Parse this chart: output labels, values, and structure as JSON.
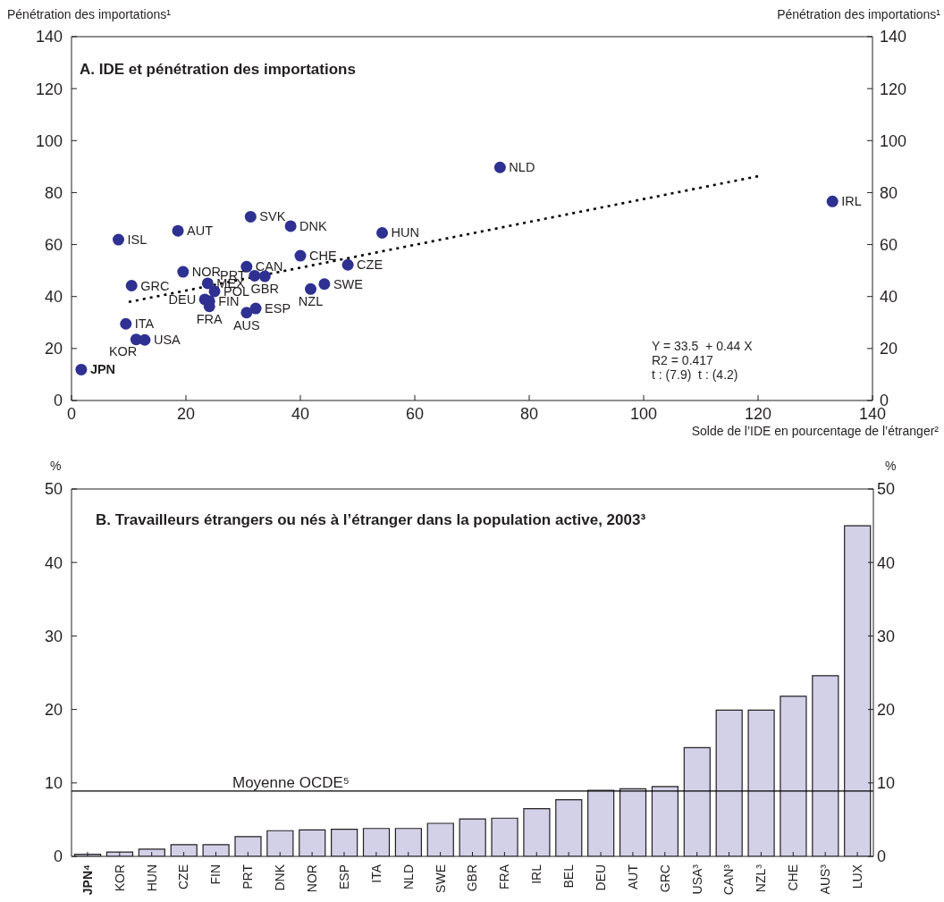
{
  "chart_data": [
    {
      "type": "scatter",
      "title": "A. IDE et pénétration des importations",
      "xlabel": "Solde de l’IDE en pourcentage de l’étranger²",
      "ylabel": "Pénétration des importations¹",
      "y2label": "Pénétration des importations¹",
      "xlim": [
        0,
        140
      ],
      "xticks": [
        0,
        20,
        40,
        60,
        80,
        100,
        120,
        140
      ],
      "ylim": [
        0,
        140
      ],
      "yticks": [
        0,
        20,
        40,
        60,
        80,
        100,
        120,
        140
      ],
      "y2lim": [
        0,
        140
      ],
      "y2ticks": [
        0,
        20,
        40,
        60,
        80,
        100,
        120,
        140
      ],
      "marker": "circle",
      "series": [
        {
          "name": "JPN",
          "color": "#2e3192",
          "x": [
            1.7
          ],
          "values": [
            11.9
          ]
        },
        {
          "name": "ISL",
          "color": "#2e3192",
          "x": [
            8.2
          ],
          "values": [
            61.9
          ]
        },
        {
          "name": "AUT",
          "color": "#2e3192",
          "x": [
            18.6
          ],
          "values": [
            65.3
          ]
        },
        {
          "name": "SVK",
          "color": "#2e3192",
          "x": [
            31.3
          ],
          "values": [
            70.7
          ]
        },
        {
          "name": "DNK",
          "color": "#2e3192",
          "x": [
            38.3
          ],
          "values": [
            67.1
          ]
        },
        {
          "name": "NLD",
          "color": "#2e3192",
          "x": [
            74.9
          ],
          "values": [
            89.7
          ]
        },
        {
          "name": "IRL",
          "color": "#2e3192",
          "x": [
            133.0
          ],
          "values": [
            76.6
          ]
        },
        {
          "name": "HUN",
          "color": "#2e3192",
          "x": [
            54.3
          ],
          "values": [
            64.5
          ]
        },
        {
          "name": "CHE",
          "color": "#2e3192",
          "x": [
            40.0
          ],
          "values": [
            55.7
          ]
        },
        {
          "name": "CZE",
          "color": "#2e3192",
          "x": [
            48.3
          ],
          "values": [
            52.2
          ]
        },
        {
          "name": "CAN",
          "color": "#2e3192",
          "x": [
            30.6
          ],
          "values": [
            51.5
          ]
        },
        {
          "name": "PRT",
          "color": "#2e3192",
          "x": [
            32.0
          ],
          "values": [
            48.0
          ]
        },
        {
          "name": "GBR",
          "color": "#2e3192",
          "x": [
            33.8
          ],
          "values": [
            47.8
          ]
        },
        {
          "name": "NOR",
          "color": "#2e3192",
          "x": [
            19.5
          ],
          "values": [
            49.5
          ]
        },
        {
          "name": "GRC",
          "color": "#2e3192",
          "x": [
            10.5
          ],
          "values": [
            44.2
          ]
        },
        {
          "name": "MEX",
          "color": "#2e3192",
          "x": [
            23.8
          ],
          "values": [
            45.1
          ]
        },
        {
          "name": "POL",
          "color": "#2e3192",
          "x": [
            25.0
          ],
          "values": [
            42.0
          ]
        },
        {
          "name": "DEU",
          "color": "#2e3192",
          "x": [
            23.3
          ],
          "values": [
            38.9
          ]
        },
        {
          "name": "FIN",
          "color": "#2e3192",
          "x": [
            24.1
          ],
          "values": [
            38.2
          ]
        },
        {
          "name": "FRA",
          "color": "#2e3192",
          "x": [
            24.1
          ],
          "values": [
            36.2
          ]
        },
        {
          "name": "ITA",
          "color": "#2e3192",
          "x": [
            9.5
          ],
          "values": [
            29.5
          ]
        },
        {
          "name": "USA",
          "color": "#2e3192",
          "x": [
            12.8
          ],
          "values": [
            23.3
          ]
        },
        {
          "name": "KOR",
          "color": "#2e3192",
          "x": [
            11.3
          ],
          "values": [
            23.5
          ]
        },
        {
          "name": "AUS",
          "color": "#2e3192",
          "x": [
            30.6
          ],
          "values": [
            33.8
          ]
        },
        {
          "name": "ESP",
          "color": "#2e3192",
          "x": [
            32.2
          ],
          "values": [
            35.4
          ]
        },
        {
          "name": "NZL",
          "color": "#2e3192",
          "x": [
            41.8
          ],
          "values": [
            42.9
          ]
        },
        {
          "name": "SWE",
          "color": "#2e3192",
          "x": [
            44.2
          ],
          "values": [
            44.8
          ]
        },
        {
          "type": "line",
          "color": "#000000",
          "line_style": "dotted",
          "marker": "none",
          "x": [
            10,
            120
          ],
          "values": [
            37.9,
            86.3
          ]
        }
      ],
      "annotations": [
        "Y = 33.5  + 0.44 X",
        "R2 = 0.417",
        "t : (7.9)  t : (4.2)"
      ]
    },
    {
      "type": "bar",
      "title": "B. Travailleurs étrangers ou nés à l’étranger dans la population active, 2003³",
      "ylabel": "%",
      "y2label": "%",
      "categories": [
        "JPN⁴",
        "KOR",
        "HUN",
        "CZE",
        "FIN",
        "PRT",
        "DNK",
        "NOR",
        "ESP",
        "ITA",
        "NLD",
        "SWE",
        "GBR",
        "FRA",
        "IRL",
        "BEL",
        "DEU",
        "AUT",
        "GRC",
        "USA³",
        "CAN³",
        "NZL³",
        "CHE",
        "AUS³",
        "LUX"
      ],
      "values": [
        0.3,
        0.6,
        1.0,
        1.6,
        1.6,
        2.7,
        3.5,
        3.6,
        3.7,
        3.8,
        3.8,
        4.5,
        5.1,
        5.2,
        6.5,
        7.7,
        9.0,
        9.2,
        9.5,
        14.8,
        19.9,
        19.9,
        21.8,
        24.6,
        45.0
      ],
      "color": "#d3d1e8",
      "ylim": [
        0,
        50
      ],
      "yticks": [
        0,
        10,
        20,
        30,
        40,
        50
      ],
      "y2lim": [
        0,
        50
      ],
      "y2ticks": [
        0,
        10,
        20,
        30,
        40,
        50
      ],
      "ref_lines": [
        {
          "axis": "y",
          "value": 8.9,
          "label": "Moyenne OCDE⁵",
          "color": "#000000"
        }
      ]
    }
  ]
}
